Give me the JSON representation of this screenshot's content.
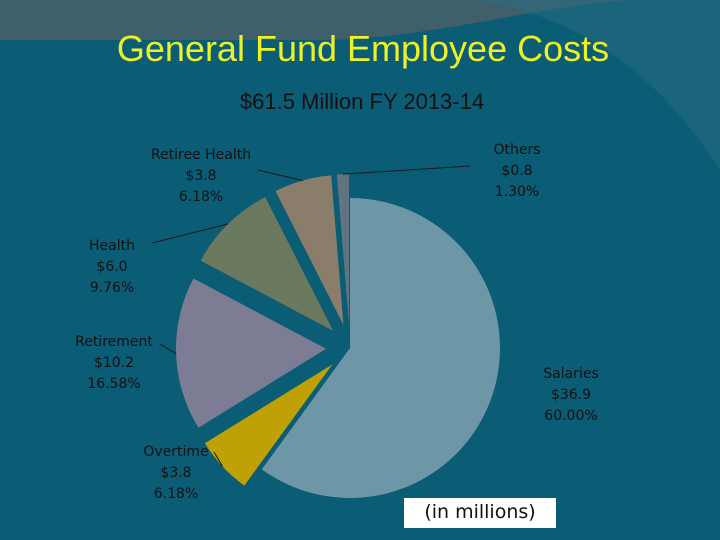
{
  "chart_data": {
    "type": "pie",
    "title": "General Fund Employee Costs",
    "subtitle": "$61.5 Million FY 2013-14",
    "note": "(in millions)",
    "slices": [
      {
        "name": "Salaries",
        "value": 36.9,
        "value_label": "$36.9",
        "percent_label": "60.00%",
        "color": "#6d97a6",
        "exploded": false
      },
      {
        "name": "Overtime",
        "value": 3.8,
        "value_label": "$3.8",
        "percent_label": "6.18%",
        "color": "#bfa106",
        "exploded": true
      },
      {
        "name": "Retirement",
        "value": 10.2,
        "value_label": "$10.2",
        "percent_label": "16.58%",
        "color": "#7c7d95",
        "exploded": true
      },
      {
        "name": "Health",
        "value": 6.0,
        "value_label": "$6.0",
        "percent_label": "9.76%",
        "color": "#6b7a5e",
        "exploded": true
      },
      {
        "name": "Retiree Health",
        "value": 3.8,
        "value_label": "$3.8",
        "percent_label": "6.18%",
        "color": "#8a7e6b",
        "exploded": true
      },
      {
        "name": "Others",
        "value": 0.8,
        "value_label": "$0.8",
        "percent_label": "1.30%",
        "color": "#617482",
        "exploded": true
      }
    ]
  },
  "colors": {
    "background": "#3f5f6b",
    "panel": "#0b5c75",
    "title": "#ecf226",
    "text": "#111111"
  }
}
